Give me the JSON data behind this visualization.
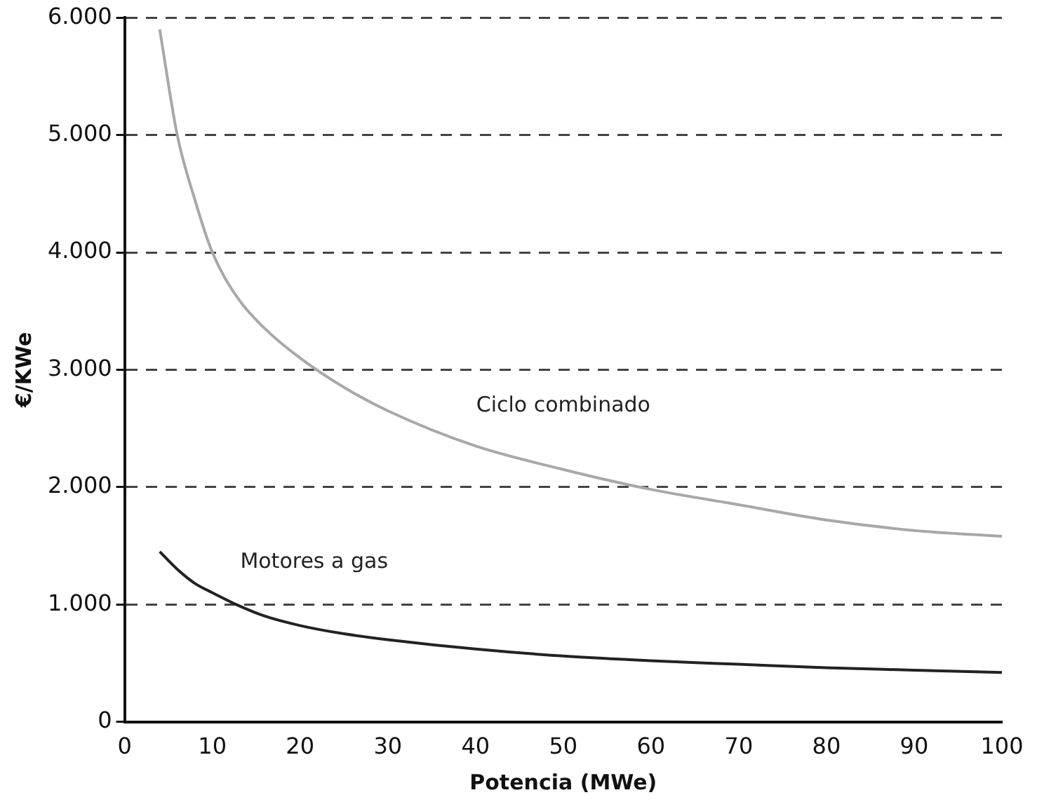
{
  "chart_data": {
    "type": "line",
    "xlabel": "Potencia (MWe)",
    "ylabel": "€/KWe",
    "xlim": [
      0,
      100
    ],
    "xticks": [
      0,
      10,
      20,
      30,
      40,
      50,
      60,
      70,
      80,
      90,
      100
    ],
    "ylim": [
      0,
      6000
    ],
    "yticks": [
      {
        "value": 0,
        "label": "0"
      },
      {
        "value": 1000,
        "label": "1.000"
      },
      {
        "value": 2000,
        "label": "2.000"
      },
      {
        "value": 3000,
        "label": "3.000"
      },
      {
        "value": 4000,
        "label": "4.000"
      },
      {
        "value": 5000,
        "label": "5.000"
      },
      {
        "value": 6000,
        "label": "6.000"
      }
    ],
    "grid": "y",
    "legend": false,
    "marker": "none",
    "series": [
      {
        "name": "Ciclo combinado",
        "color": "#a8a8a8",
        "x": [
          4,
          6,
          8,
          10,
          13,
          16,
          20,
          25,
          30,
          40,
          50,
          60,
          70,
          80,
          90,
          100
        ],
        "values": [
          5900,
          5000,
          4450,
          4000,
          3600,
          3350,
          3100,
          2850,
          2650,
          2350,
          2150,
          1980,
          1850,
          1720,
          1630,
          1580
        ]
      },
      {
        "name": "Motores a gas",
        "color": "#222222",
        "x": [
          4,
          6,
          8,
          10,
          13,
          16,
          20,
          25,
          30,
          40,
          50,
          60,
          70,
          80,
          90,
          100
        ],
        "values": [
          1450,
          1300,
          1180,
          1100,
          990,
          900,
          820,
          750,
          700,
          620,
          560,
          520,
          490,
          460,
          440,
          420
        ]
      }
    ]
  }
}
